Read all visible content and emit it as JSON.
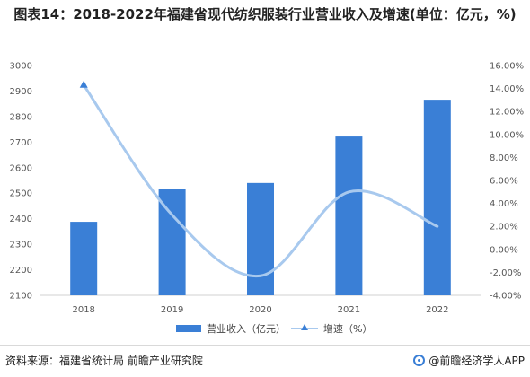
{
  "title": "图表14：2018-2022年福建省现代纺织服装行业营业收入及增速(单位：亿元，%)",
  "chart_data": {
    "type": "bar",
    "categories": [
      "2018",
      "2019",
      "2020",
      "2021",
      "2022"
    ],
    "series": [
      {
        "name": "营业收入（亿元）",
        "type": "bar",
        "axis": "left",
        "color": "#3a7fd6",
        "values": [
          2388,
          2515,
          2540,
          2722,
          2866
        ]
      },
      {
        "name": "增速（%）",
        "type": "line",
        "axis": "right",
        "color": "#a8c9ee",
        "values": [
          14.3,
          3.0,
          -2.3,
          5.0,
          2.0
        ]
      }
    ],
    "y_left": {
      "lim": [
        2100,
        3000
      ],
      "ticks": [
        "2100",
        "2200",
        "2300",
        "2400",
        "2500",
        "2600",
        "2700",
        "2800",
        "2900",
        "3000"
      ]
    },
    "y_right": {
      "lim": [
        -4,
        16
      ],
      "ticks": [
        "-4.00%",
        "-2.00%",
        "0.00%",
        "2.00%",
        "4.00%",
        "6.00%",
        "8.00%",
        "10.00%",
        "12.00%",
        "14.00%",
        "16.00%"
      ]
    },
    "grid": false,
    "legend_position": "bottom"
  },
  "footer": {
    "source": "资料来源：福建省统计局 前瞻产业研究院",
    "brand": "@前瞻经济学人APP"
  },
  "icons": {
    "brand_logo": "brand-logo-icon",
    "line_marker": "triangle-marker-icon"
  }
}
